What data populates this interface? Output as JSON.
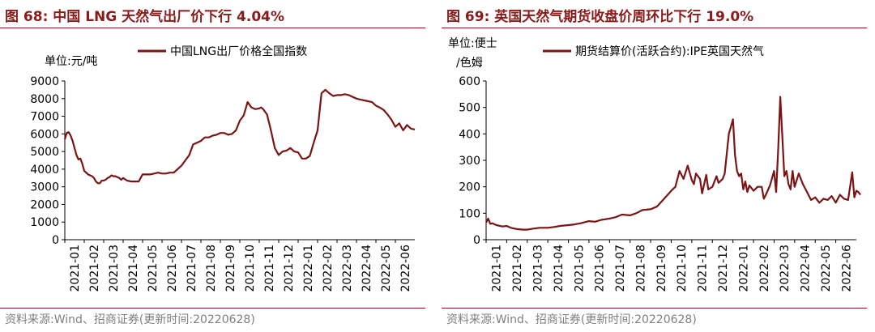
{
  "left": {
    "figure_title": "图 68:  中国 LNG 天然气出厂价下行 4.04%",
    "source": "资料来源:Wind、招商证券(更新时间:20220628)",
    "unit_label": "单位:元/吨",
    "legend_label": "中国LNG出厂价格全国指数",
    "line_color": "#7b1414"
  },
  "right": {
    "figure_title": "图 69:  英国天然气期货收盘价周环比下行 19.0%",
    "source": "资料来源:Wind、招商证券(更新时间:20220628)",
    "unit_label_1": "单位:便士",
    "unit_label_2": "/色姆",
    "legend_label": "期货结算价(活跃合约):IPE英国天然气",
    "line_color": "#7b1414"
  },
  "chart_data": [
    {
      "type": "line",
      "title": "中国LNG出厂价格全国指数",
      "ylabel": "单位:元/吨",
      "ylim": [
        0,
        9000
      ],
      "y_ticks": [
        0,
        1000,
        2000,
        3000,
        4000,
        5000,
        6000,
        7000,
        8000,
        9000
      ],
      "x_ticks": [
        "2021-01",
        "2021-02",
        "2021-03",
        "2021-04",
        "2021-05",
        "2021-06",
        "2021-07",
        "2021-08",
        "2021-09",
        "2021-10",
        "2021-11",
        "2021-12",
        "2022-01",
        "2022-02",
        "2022-03",
        "2022-04",
        "2022-05",
        "2022-06"
      ],
      "grid": false,
      "legend": "top",
      "series": [
        {
          "name": "中国LNG出厂价格全国指数",
          "x": [
            0,
            0.1,
            0.2,
            0.3,
            0.4,
            0.5,
            0.6,
            0.7,
            0.8,
            0.9,
            1.0,
            1.1,
            1.2,
            1.3,
            1.4,
            1.5,
            1.6,
            1.7,
            1.8,
            1.9,
            2.0,
            2.1,
            2.2,
            2.3,
            2.4,
            2.5,
            2.6,
            2.7,
            2.8,
            2.9,
            3.0,
            3.2,
            3.4,
            3.6,
            3.8,
            4.0,
            4.2,
            4.4,
            4.6,
            4.8,
            5.0,
            5.2,
            5.4,
            5.6,
            5.8,
            6.0,
            6.2,
            6.4,
            6.6,
            6.8,
            7.0,
            7.2,
            7.4,
            7.6,
            7.8,
            8.0,
            8.2,
            8.4,
            8.6,
            8.8,
            9.0,
            9.2,
            9.4,
            9.6,
            9.8,
            10.0,
            10.1,
            10.2,
            10.4,
            10.6,
            10.8,
            11.0,
            11.2,
            11.4,
            11.6,
            11.8,
            12.0,
            12.2,
            12.4,
            12.6,
            12.8,
            13.0,
            13.2,
            13.4,
            13.6,
            13.8,
            14.0,
            14.2,
            14.4,
            14.6,
            14.8,
            15.0,
            15.2,
            15.4,
            15.6,
            15.8,
            16.0,
            16.2,
            16.4,
            16.6,
            16.8,
            17.0,
            17.2,
            17.4,
            17.6,
            17.8,
            18.0
          ],
          "values": [
            5700,
            6050,
            6100,
            5900,
            5600,
            5200,
            4800,
            4550,
            4600,
            4300,
            3900,
            3800,
            3700,
            3650,
            3600,
            3500,
            3300,
            3200,
            3200,
            3350,
            3350,
            3400,
            3500,
            3550,
            3650,
            3600,
            3600,
            3550,
            3500,
            3400,
            3500,
            3350,
            3300,
            3300,
            3300,
            3700,
            3700,
            3700,
            3750,
            3800,
            3750,
            3750,
            3800,
            3800,
            4000,
            4200,
            4500,
            4800,
            5400,
            5500,
            5600,
            5800,
            5800,
            5900,
            5950,
            6050,
            6050,
            5950,
            6000,
            6200,
            6750,
            7050,
            7800,
            7500,
            7400,
            7450,
            7500,
            7400,
            7100,
            6200,
            5200,
            4800,
            5000,
            5050,
            5200,
            5000,
            4950,
            4600,
            4600,
            4750,
            5500,
            6200,
            8300,
            8500,
            8300,
            8150,
            8200,
            8200,
            8250,
            8200,
            8100,
            8000,
            7950,
            7900,
            7850,
            7800,
            7600,
            7500,
            7350,
            7100,
            6800,
            6400,
            6600,
            6200,
            6500,
            6300,
            6250
          ]
        }
      ]
    },
    {
      "type": "line",
      "title": "期货结算价(活跃合约):IPE英国天然气",
      "ylabel": "单位:便士/色姆",
      "ylim": [
        0,
        600
      ],
      "y_ticks": [
        0,
        100,
        200,
        300,
        400,
        500,
        600
      ],
      "x_ticks": [
        "2021-01",
        "2021-02",
        "2021-03",
        "2021-04",
        "2021-05",
        "2021-06",
        "2021-07",
        "2021-08",
        "2021-09",
        "2021-10",
        "2021-11",
        "2021-12",
        "2022-01",
        "2022-02",
        "2022-03",
        "2022-04",
        "2022-05",
        "2022-06"
      ],
      "grid": false,
      "legend": "top",
      "series": [
        {
          "name": "期货结算价(活跃合约):IPE英国天然气",
          "x": [
            0,
            0.1,
            0.2,
            0.3,
            0.5,
            0.8,
            1.0,
            1.2,
            1.5,
            1.8,
            2.0,
            2.3,
            2.6,
            3.0,
            3.3,
            3.6,
            4.0,
            4.3,
            4.6,
            5.0,
            5.3,
            5.6,
            6.0,
            6.3,
            6.6,
            7.0,
            7.3,
            7.6,
            8.0,
            8.3,
            8.6,
            9.0,
            9.2,
            9.4,
            9.6,
            9.8,
            10.0,
            10.1,
            10.2,
            10.4,
            10.5,
            10.7,
            10.8,
            11.0,
            11.2,
            11.3,
            11.5,
            11.6,
            11.8,
            12.0,
            12.1,
            12.2,
            12.3,
            12.4,
            12.5,
            12.6,
            12.7,
            12.8,
            13.0,
            13.2,
            13.4,
            13.5,
            13.6,
            13.8,
            14.0,
            14.1,
            14.2,
            14.3,
            14.5,
            14.6,
            14.7,
            14.8,
            14.9,
            15.0,
            15.2,
            15.4,
            15.6,
            15.8,
            16.0,
            16.2,
            16.4,
            16.6,
            16.8,
            17.0,
            17.2,
            17.4,
            17.6,
            17.8,
            17.9,
            18.0,
            18.1,
            18.2
          ],
          "values": [
            65,
            80,
            60,
            62,
            55,
            50,
            52,
            45,
            40,
            38,
            38,
            42,
            45,
            45,
            48,
            52,
            55,
            58,
            62,
            70,
            68,
            75,
            80,
            85,
            95,
            92,
            100,
            112,
            115,
            125,
            150,
            185,
            200,
            260,
            230,
            280,
            225,
            210,
            250,
            230,
            175,
            245,
            190,
            200,
            240,
            215,
            230,
            250,
            400,
            455,
            320,
            260,
            240,
            250,
            190,
            220,
            180,
            205,
            185,
            200,
            200,
            155,
            170,
            205,
            260,
            180,
            340,
            540,
            240,
            260,
            210,
            190,
            260,
            200,
            250,
            210,
            180,
            150,
            160,
            140,
            155,
            150,
            165,
            140,
            170,
            155,
            150,
            255,
            160,
            185,
            180,
            170
          ]
        }
      ]
    }
  ]
}
